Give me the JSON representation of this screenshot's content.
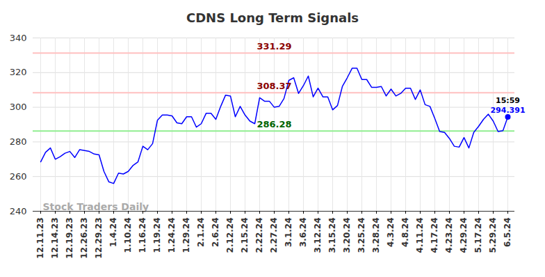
{
  "chart_data": {
    "type": "line",
    "title": "CDNS Long Term Signals",
    "categories": [
      "12.11.23",
      null,
      null,
      "12.14.23",
      null,
      null,
      "12.19.23",
      null,
      null,
      "12.26.23",
      null,
      null,
      "12.29.23",
      null,
      null,
      "1.4.24",
      null,
      null,
      "1.10.24",
      null,
      null,
      "1.16.24",
      null,
      null,
      "1.19.24",
      null,
      null,
      "1.24.24",
      null,
      null,
      "1.29.24",
      null,
      null,
      "2.1.24",
      null,
      null,
      "2.6.24",
      null,
      null,
      "2.12.24",
      null,
      null,
      "2.15.24",
      null,
      null,
      "2.22.24",
      null,
      null,
      "2.27.24",
      null,
      null,
      "3.1.24",
      null,
      null,
      "3.6.24",
      null,
      null,
      "3.12.24",
      null,
      null,
      "3.15.24",
      null,
      null,
      "3.20.24",
      null,
      null,
      "3.25.24",
      null,
      null,
      "3.28.24",
      null,
      null,
      "4.3.24",
      null,
      null,
      "4.8.24",
      null,
      null,
      "4.11.24",
      null,
      null,
      "4.17.24",
      null,
      null,
      "4.23.24",
      null,
      null,
      "4.29.24",
      null,
      null,
      "5.17.24",
      null,
      null,
      "5.29.24",
      null,
      null,
      "6.5.24"
    ],
    "values": [
      268.5,
      274,
      276.5,
      270,
      271.5,
      273.5,
      274.5,
      271,
      275.5,
      275,
      274.5,
      273,
      272.5,
      263,
      257,
      256,
      262,
      261.5,
      263,
      266.5,
      268.5,
      277.5,
      275.5,
      279,
      292.5,
      295.5,
      295.5,
      295,
      291,
      290.5,
      294.5,
      294.5,
      288.5,
      290.5,
      296.5,
      296.5,
      293,
      300.5,
      307,
      306.5,
      294.5,
      300.5,
      295.5,
      292,
      290.5,
      305.5,
      303.5,
      303.5,
      300,
      300.5,
      305,
      315.5,
      317,
      308,
      312.5,
      318,
      306,
      311,
      306,
      306,
      298.5,
      301,
      312,
      317,
      322.5,
      322.5,
      316,
      316,
      311.5,
      311.5,
      312,
      306.5,
      310.5,
      306.5,
      308,
      311,
      311,
      304.5,
      310,
      301.5,
      300.5,
      293.5,
      286,
      285.5,
      282,
      277.5,
      277,
      282.5,
      276.5,
      285.5,
      289,
      293,
      296,
      292,
      286,
      286.5,
      294.391
    ],
    "color": "#0000ff",
    "ylim": [
      240,
      340
    ],
    "yticks": [
      240,
      260,
      280,
      300,
      320,
      340
    ],
    "grid": true,
    "levels": [
      {
        "value": 331.29,
        "label": "331.29",
        "color": "#ffc0c0",
        "label_color": "#8b0000"
      },
      {
        "value": 308.37,
        "label": "308.37",
        "color": "#ffc0c0",
        "label_color": "#8b0000"
      },
      {
        "value": 286.28,
        "label": "286.28",
        "color": "#90ee90",
        "label_color": "#006400"
      }
    ],
    "last_label": {
      "time": "15:59",
      "value": 294.391,
      "label": "294.391"
    },
    "watermark": "Stock Traders Daily"
  }
}
